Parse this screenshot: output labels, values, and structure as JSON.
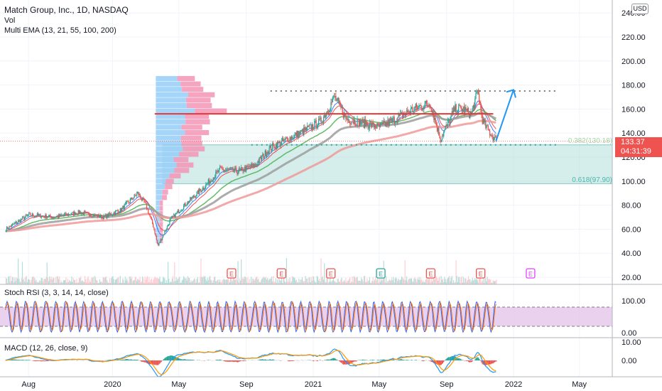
{
  "header": {
    "title": "Match Group, Inc., 1D, NASDAQ",
    "vol_label": "Vol",
    "ema_label": "Multi EMA (13, 21, 55, 100, 200)",
    "currency": "USD"
  },
  "price_tag": {
    "price": "133.37",
    "countdown": "04:31:39"
  },
  "fib": {
    "level_382": "0.382(130.18)",
    "level_618": "0.618(97.90)"
  },
  "indicators": {
    "stoch_label": "Stoch RSI (3, 3, 14, 14, close)",
    "macd_label": "MACD (12, 26, close, 9)"
  },
  "earnings_marker": "E",
  "colors": {
    "candle_up": "#26a69a",
    "candle_down": "#ef5350",
    "ema13": "#2962ff",
    "ema21": "#e53935",
    "ema55": "#4caf50",
    "ema100": "#9e9e9e",
    "ema200": "#ef9a9a",
    "resistance": "#e53935",
    "arrow": "#2196f3",
    "fib_zone": "#b2dfdb",
    "stoch_band": "#e1bee7",
    "macd": "#2196f3",
    "signal": "#ff9800"
  },
  "chart_data": [
    {
      "type": "line",
      "name": "price",
      "ylim": [
        15,
        250
      ],
      "y_ticks": [
        "20.00",
        "40.00",
        "60.00",
        "80.00",
        "100.00",
        "120.00",
        "140.00",
        "160.00",
        "180.00",
        "200.00",
        "220.00",
        "240.00"
      ],
      "x_ticks": [
        "Aug",
        "2020",
        "May",
        "Sep",
        "2021",
        "May",
        "Sep",
        "2022",
        "May"
      ],
      "x": [
        "2019-06-20",
        "2019-08-01",
        "2019-09-15",
        "2019-11-01",
        "2019-12-15",
        "2020-01-15",
        "2020-02-15",
        "2020-03-01",
        "2020-03-15",
        "2020-03-23",
        "2020-04-15",
        "2020-05-15",
        "2020-06-15",
        "2020-07-15",
        "2020-08-15",
        "2020-09-15",
        "2020-10-15",
        "2020-11-15",
        "2020-12-15",
        "2021-01-15",
        "2021-02-08",
        "2021-03-01",
        "2021-04-01",
        "2021-05-01",
        "2021-06-01",
        "2021-07-01",
        "2021-08-01",
        "2021-08-20",
        "2021-09-15",
        "2021-10-01",
        "2021-10-15",
        "2021-10-27",
        "2021-11-05",
        "2021-11-15",
        "2021-11-30"
      ],
      "close": [
        60,
        72,
        70,
        74,
        70,
        76,
        90,
        80,
        62,
        46,
        68,
        82,
        95,
        110,
        108,
        113,
        128,
        135,
        142,
        150,
        170,
        152,
        148,
        145,
        152,
        160,
        165,
        135,
        160,
        160,
        155,
        175,
        150,
        142,
        133.37
      ],
      "resistance": 156,
      "target_level": 175,
      "fib": [
        {
          "label": "0.382",
          "value": 130.18
        },
        {
          "label": "0.618",
          "value": 97.9
        }
      ],
      "projection": {
        "from": 133.37,
        "to": 176,
        "x_from": "2021-11-30",
        "x_to": "2022-01-01"
      },
      "earnings_markers": [
        "2020-08-05",
        "2020-11-04",
        "2021-02-02",
        "2021-05-04",
        "2021-08-03",
        "2021-11-02",
        "2022-02-01"
      ]
    },
    {
      "type": "line",
      "name": "Stoch RSI",
      "ylim": [
        0,
        100
      ],
      "y_ticks": [
        "100.00",
        "0.00"
      ],
      "bands": [
        20,
        80
      ]
    },
    {
      "type": "line",
      "name": "MACD",
      "y_ticks": [
        "10.00",
        "0.00"
      ],
      "series": [
        "MACD",
        "Signal",
        "Histogram"
      ]
    }
  ]
}
